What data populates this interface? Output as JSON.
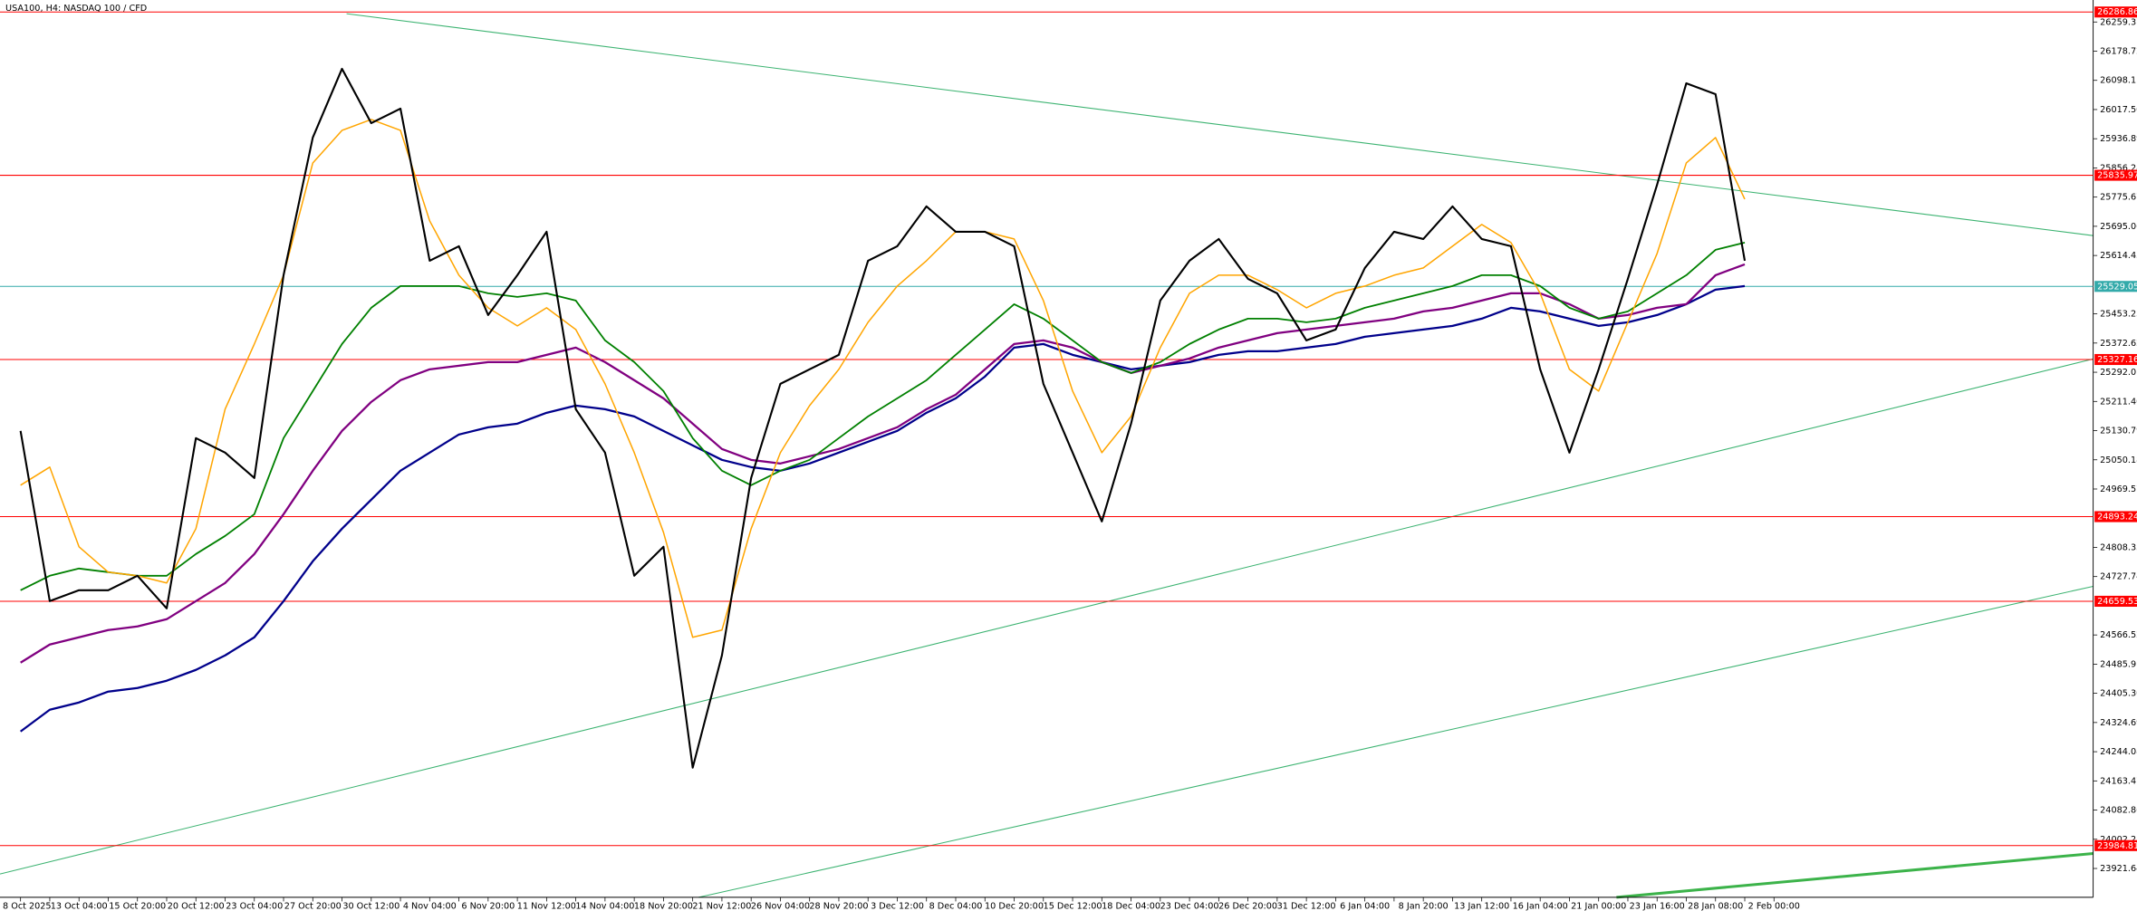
{
  "chart_data": {
    "type": "line",
    "title": "USA100, H4:  NASDAQ 100 / CFD",
    "categories": [
      "8 Oct 2025",
      null,
      "13 Oct 04:00",
      null,
      "15 Oct 20:00",
      null,
      "20 Oct 12:00",
      null,
      "23 Oct 04:00",
      null,
      "27 Oct 20:00",
      null,
      "30 Oct 12:00",
      null,
      "4 Nov 04:00",
      null,
      "6 Nov 20:00",
      null,
      "11 Nov 12:00",
      null,
      "14 Nov 04:00",
      null,
      "18 Nov 20:00",
      null,
      "21 Nov 12:00",
      null,
      "26 Nov 04:00",
      null,
      "28 Nov 20:00",
      null,
      "3 Dec 12:00",
      null,
      "8 Dec 04:00",
      null,
      "10 Dec 20:00",
      null,
      "15 Dec 12:00",
      null,
      "18 Dec 04:00",
      null,
      "23 Dec 04:00",
      null,
      "26 Dec 20:00",
      null,
      "31 Dec 12:00",
      null,
      "6 Jan 04:00",
      null,
      "8 Jan 20:00",
      null,
      "13 Jan 12:00",
      null,
      "16 Jan 04:00",
      null,
      "21 Jan 00:00",
      null,
      "23 Jan 16:00",
      null,
      "28 Jan 08:00",
      null,
      "2 Feb 00:00"
    ],
    "series": [
      {
        "color": "#00008b",
        "values": [
          24300,
          24360,
          24380,
          24410,
          24420,
          24440,
          24470,
          24510,
          24560,
          24660,
          24770,
          24860,
          24940,
          25020,
          25070,
          25120,
          25140,
          25150,
          25180,
          25200,
          25190,
          25170,
          25130,
          25090,
          25050,
          25030,
          25020,
          25040,
          25070,
          25100,
          25130,
          25180,
          25220,
          25280,
          25360,
          25370,
          25340,
          25320,
          25300,
          25310,
          25320,
          25340,
          25350,
          25350,
          25360,
          25370,
          25390,
          25400,
          25410,
          25420,
          25440,
          25470,
          25460,
          25440,
          25420,
          25430,
          25450,
          25480,
          25520,
          25530,
          null
        ]
      },
      {
        "color": "#800080",
        "values": [
          24490,
          24540,
          24560,
          24580,
          24590,
          24610,
          24660,
          24710,
          24790,
          24900,
          25020,
          25130,
          25210,
          25270,
          25300,
          25310,
          25320,
          25320,
          25340,
          25360,
          25320,
          25270,
          25220,
          25150,
          25080,
          25050,
          25040,
          25060,
          25080,
          25110,
          25140,
          25190,
          25230,
          25300,
          25370,
          25380,
          25360,
          25320,
          25290,
          25310,
          25330,
          25360,
          25380,
          25400,
          25410,
          25420,
          25430,
          25440,
          25460,
          25470,
          25490,
          25510,
          25510,
          25480,
          25440,
          25450,
          25470,
          25480,
          25560,
          25590,
          null
        ]
      },
      {
        "color": "#008000",
        "values": [
          24690,
          24730,
          24750,
          24740,
          24730,
          24730,
          24790,
          24840,
          24900,
          25110,
          25240,
          25370,
          25470,
          25530,
          25530,
          25530,
          25510,
          25500,
          25510,
          25490,
          25380,
          25320,
          25240,
          25110,
          25020,
          24980,
          25020,
          25050,
          25110,
          25170,
          25220,
          25270,
          25340,
          25410,
          25480,
          25440,
          25380,
          25320,
          25290,
          25320,
          25370,
          25410,
          25440,
          25440,
          25430,
          25440,
          25470,
          25490,
          25510,
          25530,
          25560,
          25560,
          25530,
          25470,
          25440,
          25460,
          25510,
          25560,
          25630,
          25650,
          null
        ]
      },
      {
        "color": "#ffa500",
        "values": [
          24980,
          25030,
          24810,
          24740,
          24730,
          24710,
          24860,
          25190,
          25370,
          25560,
          25870,
          25960,
          25990,
          25960,
          25710,
          25560,
          25470,
          25420,
          25470,
          25410,
          25260,
          25070,
          24850,
          24560,
          24580,
          24860,
          25070,
          25200,
          25300,
          25430,
          25530,
          25600,
          25680,
          25680,
          25660,
          25490,
          25240,
          25070,
          25170,
          25360,
          25510,
          25560,
          25560,
          25520,
          25470,
          25510,
          25530,
          25560,
          25580,
          25640,
          25700,
          25650,
          25510,
          25300,
          25240,
          25430,
          25620,
          25870,
          25940,
          25770,
          null
        ]
      },
      {
        "color": "#000000",
        "values": [
          25130,
          24660,
          24690,
          24690,
          24730,
          24640,
          25110,
          25070,
          25000,
          25560,
          25940,
          26130,
          25980,
          26020,
          25600,
          25640,
          25450,
          25560,
          25680,
          25190,
          25070,
          24730,
          24810,
          24200,
          24510,
          25000,
          25260,
          25300,
          25340,
          25600,
          25640,
          25750,
          25680,
          25680,
          25640,
          25260,
          25070,
          24880,
          25150,
          25490,
          25600,
          25660,
          25550,
          25510,
          25380,
          25410,
          25580,
          25680,
          25660,
          25750,
          25660,
          25640,
          25300,
          25070,
          25300,
          25550,
          25810,
          26090,
          26060,
          25600,
          null
        ]
      }
    ],
    "ylim": [
      23842,
      26320
    ],
    "yticks": [
      26259.31,
      26178.72,
      26098.11,
      {
        "value": 26017.5,
        "label": "26017.50"
      },
      25936.89,
      25856.28,
      25775.67,
      25695.06,
      25614.45,
      25453.23,
      25372.62,
      25292.01,
      {
        "value": 25211.4,
        "label": "25211.40"
      },
      25130.79,
      25050.18,
      24969.57,
      24808.35,
      24727.74,
      24566.52,
      24485.91,
      {
        "value": 24405.3,
        "label": "24405.30"
      },
      24324.69,
      24244.08,
      24163.47,
      24082.86,
      24002.25,
      23921.64
    ],
    "grid": false,
    "levels": [
      {
        "value": 26286.86,
        "color": "#ff0000"
      },
      {
        "value": 25835.97,
        "color": "#ff0000"
      },
      {
        "value": 25529.05,
        "color": "#33aaaa"
      },
      {
        "value": 25327.16,
        "color": "#ff0000"
      },
      {
        "value": 24893.24,
        "color": "#ff0000"
      },
      {
        "value": 24659.53,
        "color": "#ff0000"
      },
      {
        "value": 23984.81,
        "color": "#ff0000"
      }
    ]
  }
}
